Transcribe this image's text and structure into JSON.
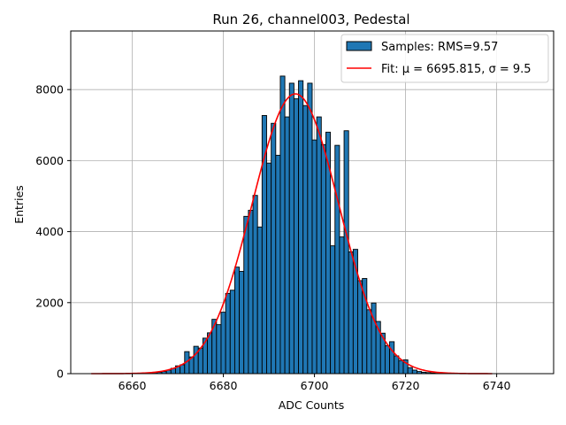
{
  "chart_data": {
    "type": "bar",
    "title": "Run 26, channel003, Pedestal",
    "xlabel": "ADC Counts",
    "ylabel": "Entries",
    "xlim": [
      6646.5,
      6752.5
    ],
    "ylim": [
      0,
      9650
    ],
    "xticks": [
      6660,
      6680,
      6700,
      6720,
      6740
    ],
    "yticks": [
      0,
      2000,
      4000,
      6000,
      8000
    ],
    "grid": true,
    "legend_position": "upper-right",
    "colors": {
      "bars": "#1f77b4",
      "bar_edge": "#000000",
      "fit": "#ff0000",
      "grid": "#b0b0b0"
    },
    "bin_width": 1,
    "histogram": {
      "name": "Samples: RMS=9.57",
      "bin_centers": [
        6664,
        6665,
        6666,
        6667,
        6668,
        6669,
        6670,
        6671,
        6672,
        6673,
        6674,
        6675,
        6676,
        6677,
        6678,
        6679,
        6680,
        6681,
        6682,
        6683,
        6684,
        6685,
        6686,
        6687,
        6688,
        6689,
        6690,
        6691,
        6692,
        6693,
        6694,
        6695,
        6696,
        6697,
        6698,
        6699,
        6700,
        6701,
        6702,
        6703,
        6704,
        6705,
        6706,
        6707,
        6708,
        6709,
        6710,
        6711,
        6712,
        6713,
        6714,
        6715,
        6716,
        6717,
        6718,
        6719,
        6720,
        6721,
        6722,
        6723,
        6724,
        6725,
        6726,
        6727,
        6728,
        6729
      ],
      "counts": [
        20,
        30,
        40,
        60,
        100,
        150,
        220,
        250,
        620,
        470,
        770,
        720,
        1000,
        1150,
        1530,
        1380,
        1730,
        2260,
        2350,
        3000,
        2880,
        4430,
        4600,
        5020,
        4130,
        7270,
        5930,
        7050,
        6150,
        8380,
        7230,
        8180,
        7740,
        8250,
        7550,
        8180,
        6580,
        7230,
        6450,
        6800,
        3600,
        6430,
        3850,
        6840,
        3430,
        3500,
        2620,
        2680,
        1800,
        1990,
        1470,
        1140,
        790,
        900,
        500,
        370,
        390,
        170,
        100,
        60,
        40,
        30,
        20,
        10,
        5,
        3
      ]
    },
    "fit": {
      "name": "Fit: μ = 6695.815, σ = 9.5",
      "mu": 6695.815,
      "sigma": 9.5,
      "amplitude": 7880,
      "x_range": [
        6651,
        6739
      ]
    },
    "legend": [
      {
        "kind": "patch",
        "label": "Samples: RMS=9.57"
      },
      {
        "kind": "line",
        "label": "Fit: μ = 6695.815, σ = 9.5"
      }
    ]
  }
}
